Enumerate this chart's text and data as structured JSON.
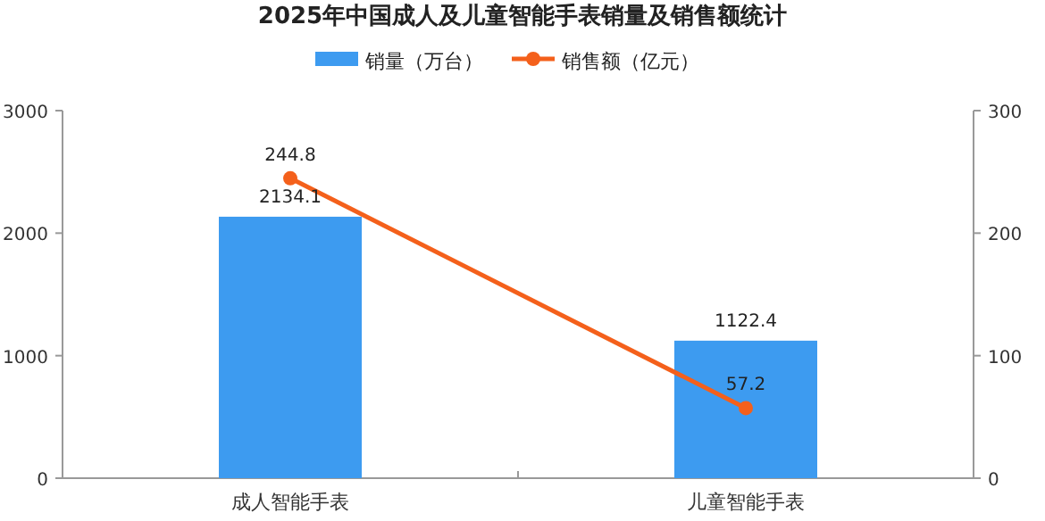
{
  "chart_data": {
    "type": "bar",
    "title": "2025年中国成人及儿童智能手表销量及销售额统计",
    "categories": [
      "成人智能手表",
      "儿童智能手表"
    ],
    "series": [
      {
        "name": "销量（万台）",
        "color": "#3d9bf0",
        "values": [
          2134.1,
          1122.4
        ]
      },
      {
        "name": "销售额（亿元）",
        "color": "#f4601b",
        "values": [
          244.8,
          57.2
        ],
        "type": "line",
        "axis": "y2"
      }
    ],
    "ylim": [
      0,
      3000
    ],
    "yticks": [
      0,
      1000,
      2000,
      3000
    ],
    "y2lim": [
      0,
      300
    ],
    "y2ticks": [
      0,
      100,
      200,
      300
    ],
    "data_labels": true,
    "legend": "top",
    "marker": "circle",
    "line_style": "solid"
  }
}
